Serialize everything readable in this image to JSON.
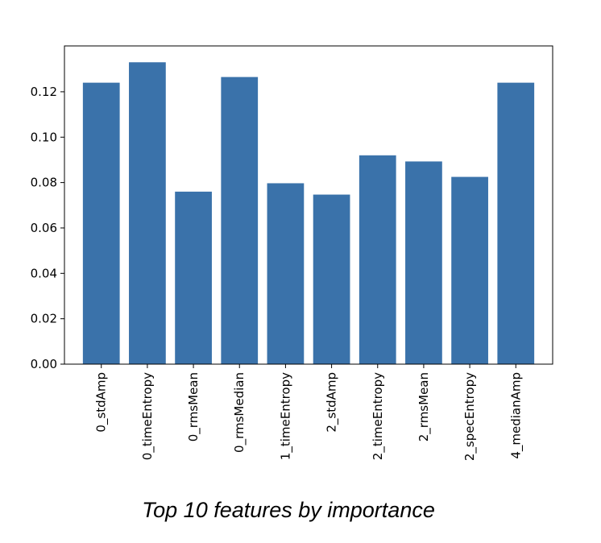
{
  "caption": "Top 10 features by importance",
  "chart_data": {
    "type": "bar",
    "categories": [
      "0_stdAmp",
      "0_timeEntropy",
      "0_rmsMean",
      "0_rmsMedian",
      "1_timeEntropy",
      "2_stdAmp",
      "2_timeEntropy",
      "2_rmsMean",
      "2_specEntropy",
      "4_medianAmp"
    ],
    "values": [
      0.124,
      0.133,
      0.076,
      0.1265,
      0.0797,
      0.0747,
      0.092,
      0.0893,
      0.0825,
      0.124
    ],
    "ylim": [
      0,
      0.1402
    ],
    "yticks": [
      "0.00",
      "0.02",
      "0.04",
      "0.06",
      "0.08",
      "0.10",
      "0.12"
    ],
    "title": "",
    "xlabel": "",
    "ylabel": "",
    "grid": false,
    "bar_color": "#3a72aa"
  }
}
